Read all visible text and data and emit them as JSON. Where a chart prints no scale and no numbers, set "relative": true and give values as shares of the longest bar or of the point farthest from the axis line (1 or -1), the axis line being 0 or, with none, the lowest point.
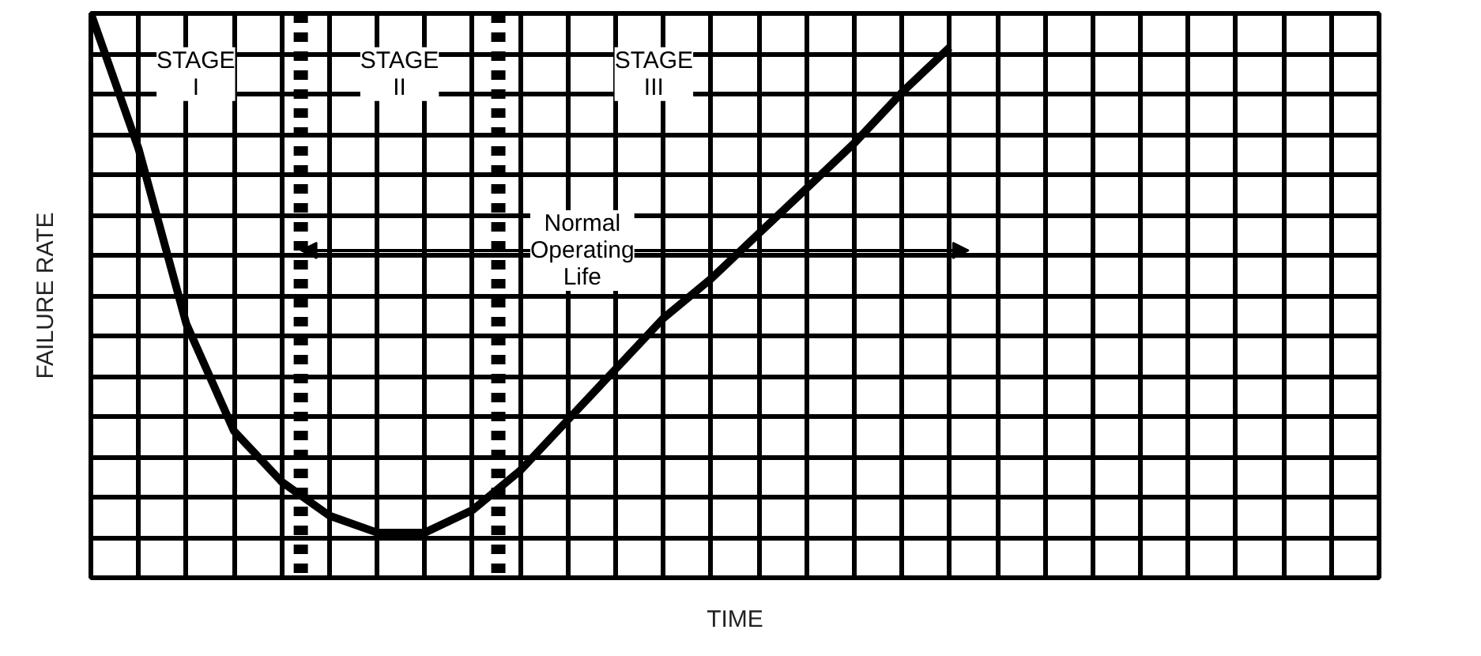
{
  "chart_data": {
    "type": "line",
    "relative": true,
    "xlabel": "TIME",
    "ylabel": "FAILURE RATE",
    "categories": [
      null,
      null,
      null,
      null,
      null,
      null,
      null,
      null,
      null,
      null,
      null,
      null,
      null,
      null,
      null,
      null,
      null,
      null,
      null,
      null,
      null,
      null,
      null,
      null,
      null,
      null,
      null,
      null
    ],
    "series": [
      {
        "color": "#000000",
        "values": [
          1.0,
          0.76,
          0.45,
          0.26,
          0.17,
          0.11,
          0.08,
          0.08,
          0.12,
          0.19,
          0.28,
          0.37,
          0.46,
          0.53,
          0.61,
          0.69,
          0.77,
          0.86,
          0.94,
          null,
          null,
          null,
          null,
          null,
          null,
          null,
          null,
          null
        ]
      }
    ],
    "annotations": [
      "STAGE\nI",
      "STAGE\nII",
      "STAGE\nIII",
      "Normal\nOperating\nLife"
    ],
    "grid": true,
    "tick_labels": false,
    "line_style": "solid",
    "marker": "none"
  }
}
